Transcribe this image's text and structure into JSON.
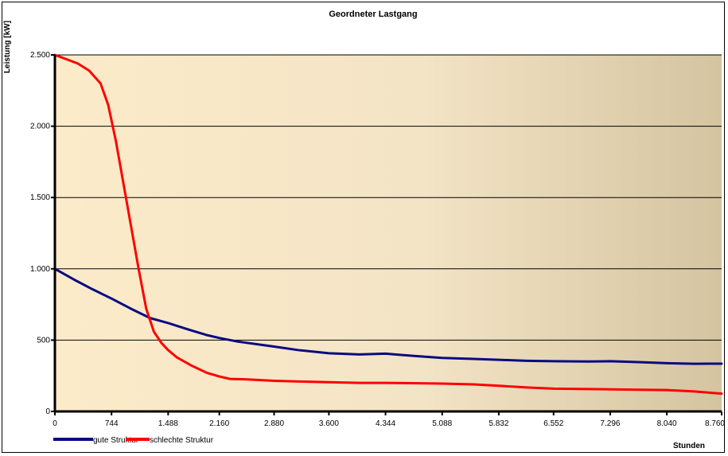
{
  "chart_data": {
    "type": "line",
    "title": "Geordneter Lastgang",
    "ylabel": "Leistung [kW]",
    "xlabel": "Stunden",
    "xlim": [
      0,
      8760
    ],
    "ylim": [
      0,
      2500
    ],
    "x_ticks": [
      0,
      744,
      1488,
      2160,
      2880,
      3600,
      4344,
      5088,
      5832,
      6552,
      7296,
      8040,
      8760
    ],
    "x_tick_labels": [
      "0",
      "744",
      "1.488",
      "2.160",
      "2.880",
      "3.600",
      "4.344",
      "5.088",
      "5.832",
      "6.552",
      "7.296",
      "8.040",
      "8.760"
    ],
    "y_ticks": [
      0,
      500,
      1000,
      1500,
      2000,
      2500
    ],
    "y_tick_labels": [
      "0",
      "500",
      "1.000",
      "1.500",
      "2.000",
      "2.500"
    ],
    "grid": "horizontal",
    "legend_position": "bottom-left",
    "background_gradient": [
      "#fcebc9",
      "#d4c4a0"
    ],
    "series": [
      {
        "name": "gute Struktur",
        "color": "#0a0a82",
        "x": [
          0,
          250,
          500,
          750,
          1000,
          1250,
          1488,
          1750,
          2000,
          2160,
          2400,
          2880,
          3200,
          3600,
          4000,
          4344,
          4700,
          5088,
          5500,
          5832,
          6200,
          6552,
          7000,
          7296,
          7700,
          8040,
          8400,
          8760
        ],
        "y": [
          1000,
          925,
          855,
          790,
          720,
          655,
          620,
          575,
          535,
          515,
          490,
          455,
          430,
          408,
          400,
          405,
          390,
          375,
          368,
          362,
          355,
          352,
          350,
          352,
          345,
          338,
          334,
          335
        ]
      },
      {
        "name": "schlechte Struktur",
        "color": "#ff0000",
        "x": [
          0,
          150,
          300,
          450,
          600,
          700,
          800,
          900,
          1000,
          1100,
          1200,
          1300,
          1400,
          1488,
          1600,
          1800,
          2000,
          2160,
          2300,
          2500,
          2880,
          3200,
          3600,
          4000,
          4344,
          4700,
          5088,
          5500,
          5832,
          6200,
          6552,
          7000,
          7296,
          7700,
          8040,
          8400,
          8760
        ],
        "y": [
          2500,
          2470,
          2440,
          2390,
          2300,
          2150,
          1900,
          1600,
          1300,
          1000,
          720,
          560,
          480,
          430,
          380,
          320,
          270,
          245,
          228,
          225,
          215,
          210,
          205,
          200,
          200,
          198,
          195,
          190,
          180,
          168,
          160,
          157,
          155,
          152,
          150,
          140,
          125
        ]
      }
    ]
  }
}
